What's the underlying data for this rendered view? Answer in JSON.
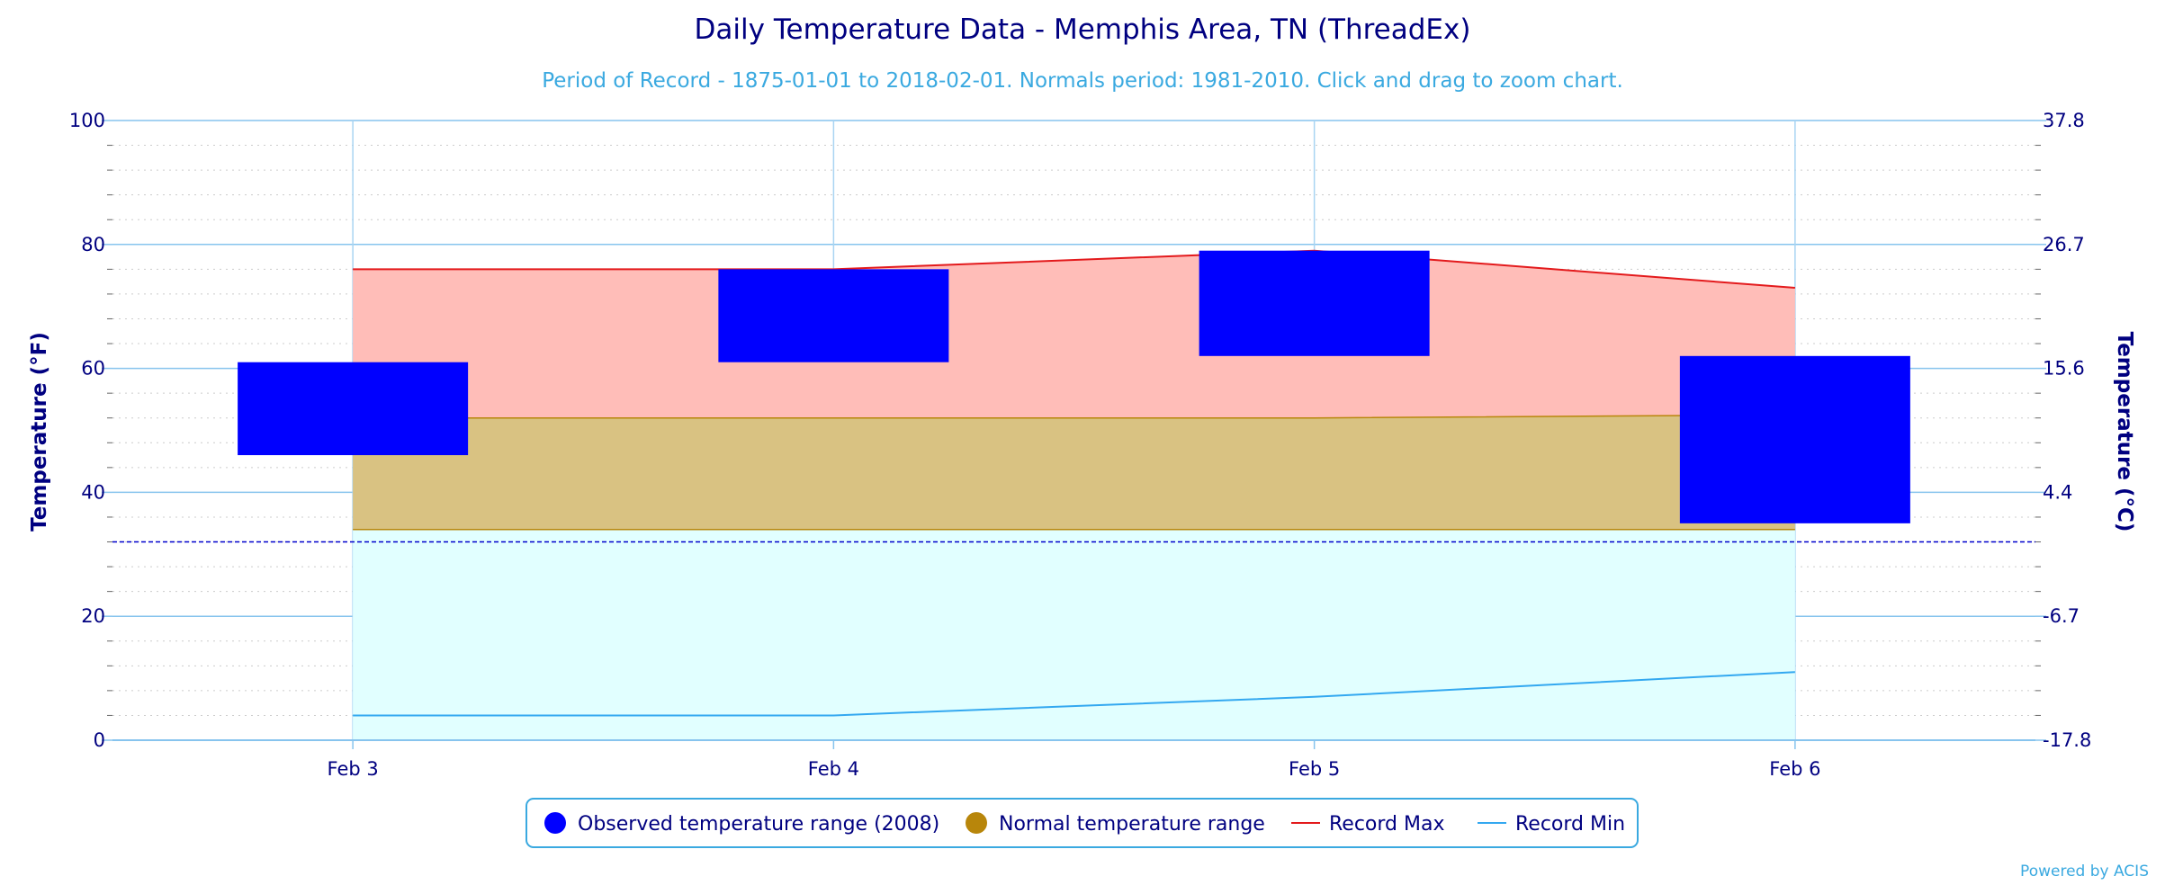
{
  "chart_data": {
    "type": "bar",
    "title": "Daily Temperature Data - Memphis Area, TN (ThreadEx)",
    "subtitle": "Period of Record - 1875-01-01 to 2018-02-01. Normals period: 1981-2010. Click and drag to zoom chart.",
    "categories": [
      "Feb 3",
      "Feb 4",
      "Feb 5",
      "Feb 6"
    ],
    "ylabel": "Temperature (°F)",
    "ylabel_right": "Temperature (°C)",
    "ylim": [
      0,
      100
    ],
    "y_ticks": [
      0,
      20,
      40,
      60,
      80,
      100
    ],
    "y_ticks_right": [
      "-17.8",
      "-6.7",
      "4.4",
      "15.6",
      "26.7",
      "37.8"
    ],
    "freezing_line": 32,
    "grid": true,
    "legend_position": "bottom",
    "series": [
      {
        "name": "Observed temperature range (2008)",
        "kind": "floating-bar",
        "color": "#0000ff",
        "low": [
          46,
          61,
          62,
          35
        ],
        "high": [
          61,
          76,
          79,
          62
        ]
      },
      {
        "name": "Normal temperature range",
        "kind": "area-range",
        "color": "#b8860b",
        "fill": "#d9c282",
        "low": [
          34,
          34,
          34,
          34
        ],
        "high": [
          52,
          52,
          52,
          52.5
        ]
      },
      {
        "name": "Record Max",
        "kind": "line",
        "color": "#e31a1c",
        "fill": "#ffbdb8",
        "values": [
          76,
          76,
          79,
          73
        ]
      },
      {
        "name": "Record Min",
        "kind": "line",
        "color": "#33a8f0",
        "fill": "#e1ffff",
        "values": [
          4,
          4,
          7,
          11
        ]
      }
    ]
  },
  "credits": "Powered by ACIS"
}
